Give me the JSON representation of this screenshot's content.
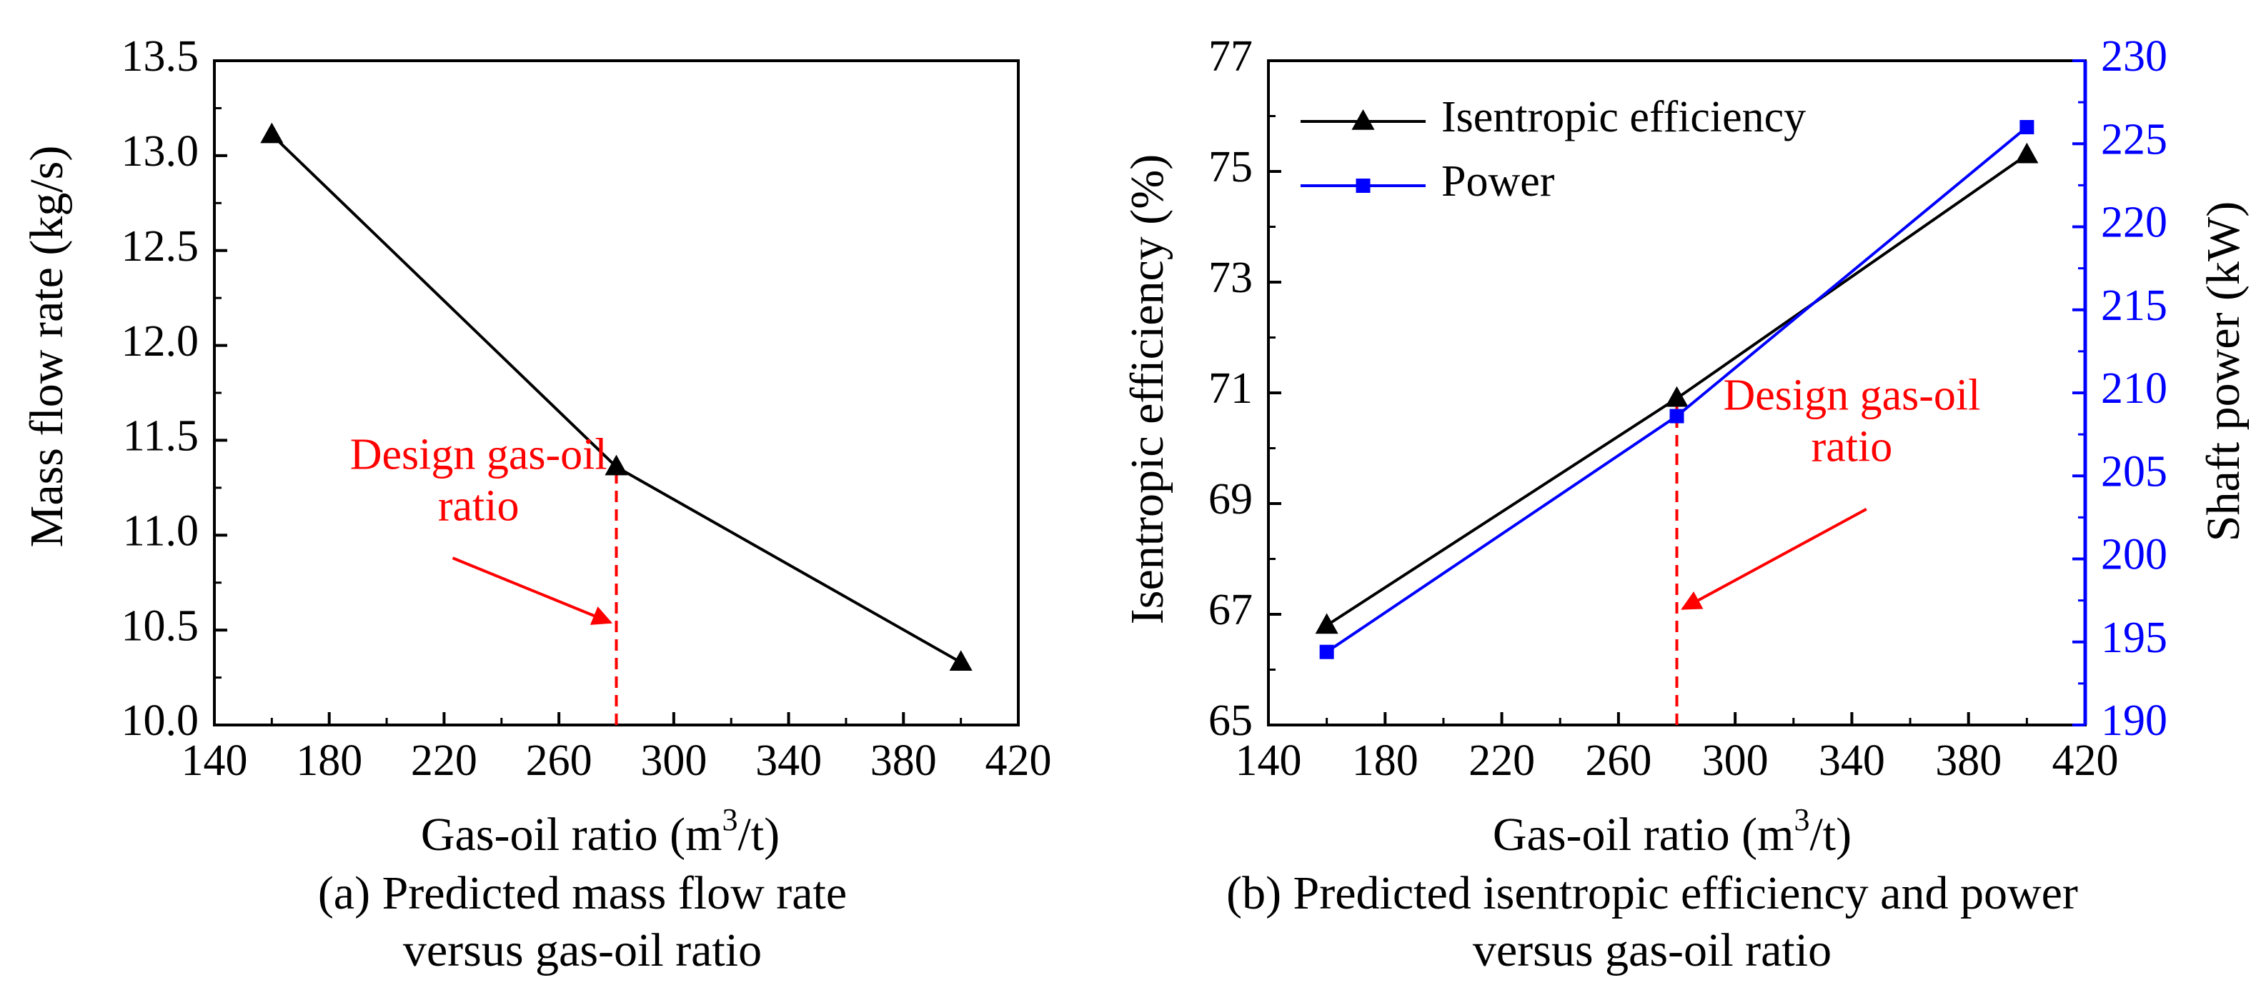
{
  "chart_data": [
    {
      "id": "a",
      "type": "line",
      "caption_lines": [
        "(a) Predicted mass flow rate",
        "versus gas-oil ratio"
      ],
      "xlabel_main": "Gas-oil ratio (m",
      "xlabel_sup": "3",
      "xlabel_end": "/t)",
      "ylabel": "Mass flow rate (kg/s)",
      "xlim": [
        140,
        420
      ],
      "ylim": [
        10.0,
        13.5
      ],
      "xticks": [
        140,
        180,
        220,
        260,
        300,
        340,
        380,
        420
      ],
      "yticks": [
        10.0,
        10.5,
        11.0,
        11.5,
        12.0,
        12.5,
        13.0,
        13.5
      ],
      "ytick_labels": [
        "10.0",
        "10.5",
        "11.0",
        "11.5",
        "12.0",
        "12.5",
        "13.0",
        "13.5"
      ],
      "series": [
        {
          "name": "Mass flow rate",
          "color": "#000000",
          "marker": "triangle",
          "x": [
            160,
            280,
            400
          ],
          "y": [
            13.11,
            11.36,
            10.33
          ]
        }
      ],
      "design_line": {
        "x": 280,
        "color": "#ff0000"
      },
      "annotation": {
        "lines": [
          "Design gas-oil",
          "ratio"
        ],
        "color": "#ff0000",
        "text_anchor": {
          "x": 232,
          "y_data": 11.35
        },
        "arrow_from": {
          "x": 223,
          "y": 10.88
        },
        "arrow_to": {
          "x": 278,
          "y": 10.54
        }
      }
    },
    {
      "id": "b",
      "type": "line",
      "caption_lines": [
        "(b) Predicted isentropic efficiency and power",
        "versus gas-oil ratio"
      ],
      "xlabel_main": "Gas-oil ratio (m",
      "xlabel_sup": "3",
      "xlabel_end": "/t)",
      "ylabel": "Isentropic efficiency (%)",
      "y2label": "Shaft power (kW)",
      "xlim": [
        140,
        420
      ],
      "ylim": [
        65,
        77
      ],
      "y2lim": [
        190,
        230
      ],
      "xticks": [
        140,
        180,
        220,
        260,
        300,
        340,
        380,
        420
      ],
      "yticks": [
        65,
        67,
        69,
        71,
        73,
        75,
        77
      ],
      "y2ticks": [
        190,
        195,
        200,
        205,
        210,
        215,
        220,
        225,
        230
      ],
      "legend": {
        "position": "top-left",
        "entries": [
          {
            "label": "Isentropic efficiency",
            "color": "#000000",
            "marker": "triangle"
          },
          {
            "label": "Power",
            "color": "#0000ff",
            "marker": "square"
          }
        ]
      },
      "series": [
        {
          "name": "Isentropic efficiency",
          "axis": "left",
          "color": "#000000",
          "marker": "triangle",
          "x": [
            160,
            280,
            400
          ],
          "y": [
            66.8,
            70.9,
            75.3
          ]
        },
        {
          "name": "Power",
          "axis": "right",
          "color": "#0000ff",
          "marker": "square",
          "x": [
            160,
            280,
            400
          ],
          "y": [
            194.4,
            208.6,
            226.0
          ]
        }
      ],
      "design_line": {
        "x": 280,
        "color": "#ff0000"
      },
      "annotation": {
        "lines": [
          "Design gas-oil",
          "ratio"
        ],
        "color": "#ff0000",
        "text_anchor": {
          "x": 340,
          "y_data": 70.7
        },
        "arrow_from": {
          "x": 345,
          "y": 68.9
        },
        "arrow_to": {
          "x": 282,
          "y": 67.1
        }
      }
    }
  ]
}
